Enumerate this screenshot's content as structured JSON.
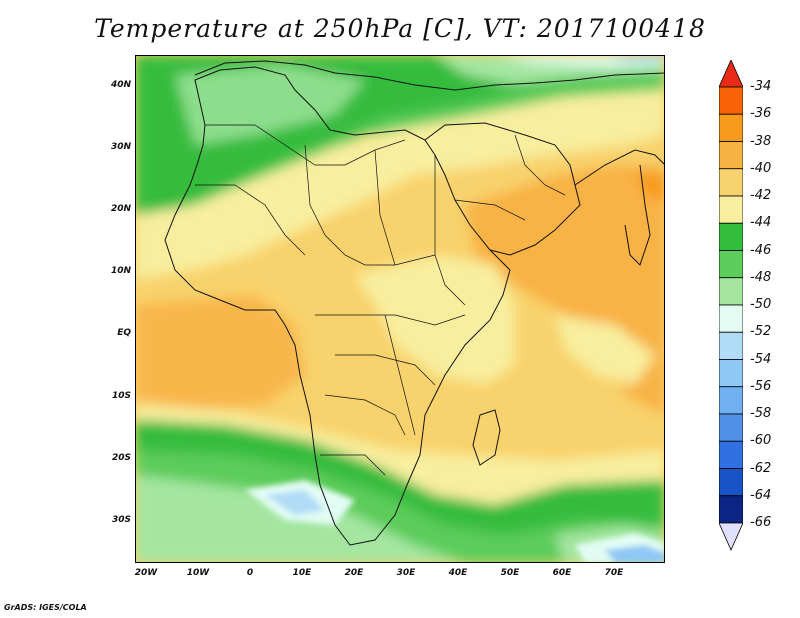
{
  "title": "Temperature at 250hPa [C], VT: 2017100418",
  "credit": "GrADS: IGES/COLA",
  "map": {
    "projection": "latlon",
    "lon_range": [
      -22,
      80
    ],
    "lat_range": [
      -37,
      45
    ],
    "lat_ticks": [
      "40N",
      "30N",
      "20N",
      "10N",
      "EQ",
      "10S",
      "20S",
      "30S"
    ],
    "lon_ticks": [
      "20W",
      "10W",
      "0",
      "10E",
      "20E",
      "30E",
      "40E",
      "50E",
      "60E",
      "70E"
    ],
    "field": "Temperature at 250hPa",
    "units": "C"
  },
  "colorbar": {
    "labels": [
      "-34",
      "-36",
      "-38",
      "-40",
      "-42",
      "-44",
      "-46",
      "-48",
      "-50",
      "-52",
      "-54",
      "-56",
      "-58",
      "-60",
      "-62",
      "-64",
      "-66"
    ],
    "colors": [
      "#e82a16",
      "#f86405",
      "#f89a1c",
      "#f8b244",
      "#f8d26c",
      "#f8ee9e",
      "#34bc3c",
      "#5ccc5a",
      "#a4e6a0",
      "#e2fcf4",
      "#b0dcf6",
      "#90c8f4",
      "#70b0f0",
      "#5090e8",
      "#3070e0",
      "#1854c8",
      "#0c2484",
      "#e0e0ff"
    ]
  }
}
